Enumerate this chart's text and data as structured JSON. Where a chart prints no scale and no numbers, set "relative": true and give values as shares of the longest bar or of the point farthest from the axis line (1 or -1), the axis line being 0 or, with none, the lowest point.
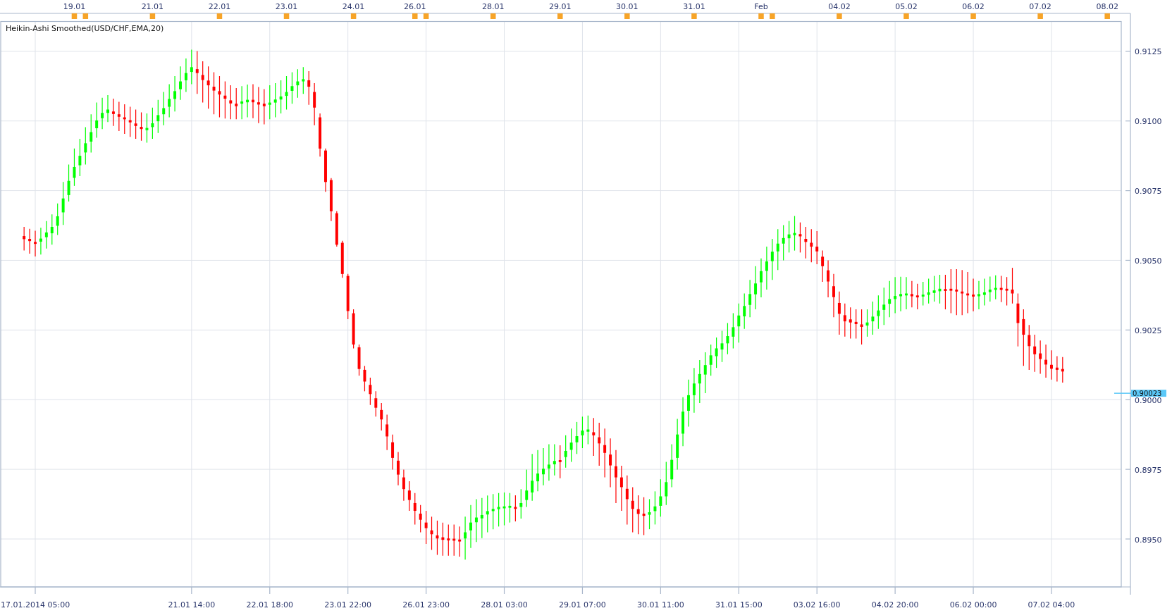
{
  "chart_data": [
    {
      "type": "bar",
      "categories": [
        null,
        null,
        null,
        null,
        null,
        null,
        null,
        null,
        null,
        "19.01",
        null,
        null,
        null,
        null,
        null,
        null,
        null,
        null,
        null,
        null,
        null,
        null,
        null,
        "21.01",
        null,
        null,
        null,
        null,
        null,
        null,
        null,
        null,
        null,
        null,
        null,
        "22.01",
        null,
        null,
        null,
        null,
        null,
        null,
        null,
        null,
        null,
        null,
        null,
        "23.01",
        null,
        null,
        null,
        null,
        null,
        null,
        null,
        null,
        null,
        null,
        null,
        "24.01",
        null,
        null,
        null,
        null,
        null,
        null,
        null,
        null,
        null,
        null,
        "26.01",
        null,
        null,
        null,
        null,
        null,
        null,
        null,
        null,
        null,
        null,
        null,
        null,
        null,
        "28.01",
        null,
        null,
        null,
        null,
        null,
        null,
        null,
        null,
        null,
        null,
        null,
        "29.01",
        null,
        null,
        null,
        null,
        null,
        null,
        null,
        null,
        null,
        null,
        null,
        "30.01",
        null,
        null,
        null,
        null,
        null,
        null,
        null,
        null,
        null,
        null,
        null,
        "31.01",
        null,
        null,
        null,
        null,
        null,
        null,
        null,
        null,
        null,
        null,
        null,
        "Feb",
        null,
        null,
        null,
        null,
        null,
        null,
        null,
        null,
        null,
        null,
        null,
        null,
        null,
        "04.02",
        null,
        null,
        null,
        null,
        null,
        null,
        null,
        null,
        null,
        null,
        null,
        "05.02",
        null,
        null,
        null,
        null,
        null,
        null,
        null,
        null,
        null,
        null,
        null,
        "06.02",
        null,
        null,
        null,
        null,
        null,
        null,
        null,
        null,
        null,
        null,
        null,
        "07.02",
        null,
        null,
        null,
        null,
        null,
        null,
        null,
        null,
        null,
        null,
        null,
        "08.02",
        null,
        null
      ],
      "values": [
        null,
        null,
        null,
        null,
        null,
        null,
        null,
        null,
        null,
        -1,
        null,
        -1,
        null,
        null,
        null,
        null,
        null,
        null,
        null,
        null,
        null,
        null,
        null,
        -1,
        null,
        null,
        null,
        null,
        null,
        null,
        null,
        null,
        null,
        null,
        null,
        -1,
        null,
        null,
        null,
        null,
        null,
        null,
        null,
        null,
        null,
        null,
        null,
        -1,
        null,
        null,
        null,
        null,
        null,
        null,
        null,
        null,
        null,
        null,
        null,
        -1,
        null,
        null,
        null,
        null,
        null,
        null,
        null,
        null,
        null,
        null,
        -1,
        null,
        -1,
        null,
        null,
        null,
        null,
        null,
        null,
        null,
        null,
        null,
        null,
        null,
        -1,
        null,
        null,
        null,
        null,
        null,
        null,
        null,
        null,
        null,
        null,
        null,
        -1,
        null,
        null,
        null,
        null,
        null,
        null,
        null,
        null,
        null,
        null,
        null,
        -1,
        null,
        null,
        null,
        null,
        null,
        null,
        null,
        null,
        null,
        null,
        null,
        -1,
        null,
        null,
        null,
        null,
        null,
        null,
        null,
        null,
        null,
        null,
        null,
        -1,
        null,
        -1,
        null,
        null,
        null,
        null,
        null,
        null,
        null,
        null,
        null,
        null,
        null,
        -1,
        null,
        null,
        null,
        null,
        null,
        null,
        null,
        null,
        null,
        null,
        null,
        -1,
        null,
        null,
        null,
        null,
        null,
        null,
        null,
        null,
        null,
        null,
        null,
        -1,
        null,
        null,
        null,
        null,
        null,
        null,
        null,
        null,
        null,
        null,
        null,
        -1,
        null,
        null,
        null,
        null,
        null,
        null,
        null,
        null,
        null,
        null,
        null,
        -1,
        null,
        null
      ],
      "relative": true,
      "color": "#f7a428"
    },
    {
      "type": "candlestick",
      "title": "Heikin-Ashi Smoothed(USD/CHF,EMA,20)",
      "categories": [
        null,
        null,
        "17.01.2014 05:00",
        null,
        null,
        null,
        null,
        null,
        null,
        null,
        null,
        null,
        null,
        null,
        null,
        null,
        null,
        null,
        null,
        null,
        null,
        null,
        null,
        null,
        null,
        null,
        null,
        null,
        null,
        null,
        "21.01 14:00",
        null,
        null,
        null,
        null,
        null,
        null,
        null,
        null,
        null,
        null,
        null,
        null,
        null,
        "22.01 18:00",
        null,
        null,
        null,
        null,
        null,
        null,
        null,
        null,
        null,
        null,
        null,
        null,
        null,
        "23.01 22:00",
        null,
        null,
        null,
        null,
        null,
        null,
        null,
        null,
        null,
        null,
        null,
        null,
        null,
        "26.01 23:00",
        null,
        null,
        null,
        null,
        null,
        null,
        null,
        null,
        null,
        null,
        null,
        null,
        null,
        "28.01 03:00",
        null,
        null,
        null,
        null,
        null,
        null,
        null,
        null,
        null,
        null,
        null,
        null,
        null,
        "29.01 07:00",
        null,
        null,
        null,
        null,
        null,
        null,
        null,
        null,
        null,
        null,
        null,
        null,
        null,
        "30.01 11:00",
        null,
        null,
        null,
        null,
        null,
        null,
        null,
        null,
        null,
        null,
        null,
        null,
        null,
        "31.01 15:00",
        null,
        null,
        null,
        null,
        null,
        null,
        null,
        null,
        null,
        null,
        null,
        null,
        null,
        "03.02 16:00",
        null,
        null,
        null,
        null,
        null,
        null,
        null,
        null,
        null,
        null,
        null,
        null,
        null,
        "04.02 20:00",
        null,
        null,
        null,
        null,
        null,
        null,
        null,
        null,
        null,
        null,
        null,
        null,
        null,
        "06.02 00:00",
        null,
        null,
        null,
        null,
        null,
        null,
        null,
        null,
        null,
        null,
        null,
        null,
        null,
        "07.02 04:00",
        null,
        null,
        null,
        null,
        null,
        null,
        null,
        null,
        null,
        null,
        null,
        null
      ],
      "ohlc": [
        [
          0.90587,
          0.9062,
          0.90535,
          0.90576
        ],
        [
          0.90577,
          0.90613,
          0.90524,
          0.90569
        ],
        [
          0.90566,
          0.90606,
          0.90514,
          0.90559
        ],
        [
          0.90567,
          0.90617,
          0.90521,
          0.90578
        ],
        [
          0.90583,
          0.90641,
          0.90542,
          0.906
        ],
        [
          0.90597,
          0.90665,
          0.90556,
          0.9062
        ],
        [
          0.90624,
          0.90704,
          0.90591,
          0.90658
        ],
        [
          0.90672,
          0.90781,
          0.90627,
          0.90722
        ],
        [
          0.90734,
          0.90844,
          0.90711,
          0.90785
        ],
        [
          0.90796,
          0.90901,
          0.90767,
          0.90835
        ],
        [
          0.90841,
          0.90936,
          0.90802,
          0.90875
        ],
        [
          0.90887,
          0.90978,
          0.90844,
          0.9092
        ],
        [
          0.90926,
          0.91024,
          0.90887,
          0.9096
        ],
        [
          0.90974,
          0.91066,
          0.9094,
          0.91002
        ],
        [
          0.9101,
          0.91083,
          0.90971,
          0.91029
        ],
        [
          0.91029,
          0.91093,
          0.90996,
          0.91041
        ],
        [
          0.91034,
          0.9108,
          0.90982,
          0.91025
        ],
        [
          0.91024,
          0.91069,
          0.90964,
          0.91015
        ],
        [
          0.91013,
          0.9106,
          0.90954,
          0.91006
        ],
        [
          0.91003,
          0.91051,
          0.90943,
          0.90995
        ],
        [
          0.90991,
          0.91041,
          0.90936,
          0.90982
        ],
        [
          0.90979,
          0.91031,
          0.90929,
          0.90971
        ],
        [
          0.90967,
          0.91027,
          0.90922,
          0.90975
        ],
        [
          0.90978,
          0.91048,
          0.90936,
          0.90992
        ],
        [
          0.90999,
          0.91076,
          0.90957,
          0.91021
        ],
        [
          0.91024,
          0.91104,
          0.90985,
          0.91046
        ],
        [
          0.91051,
          0.91132,
          0.91013,
          0.91079
        ],
        [
          0.91079,
          0.91161,
          0.91034,
          0.91107
        ],
        [
          0.91114,
          0.91196,
          0.91076,
          0.91142
        ],
        [
          0.91146,
          0.91224,
          0.91104,
          0.91172
        ],
        [
          0.91176,
          0.91256,
          0.91132,
          0.91193
        ],
        [
          0.91186,
          0.91251,
          0.91097,
          0.91172
        ],
        [
          0.91165,
          0.91214,
          0.91066,
          0.91147
        ],
        [
          0.91145,
          0.91196,
          0.91044,
          0.91128
        ],
        [
          0.91123,
          0.91175,
          0.91024,
          0.91109
        ],
        [
          0.91107,
          0.91161,
          0.91013,
          0.91095
        ],
        [
          0.91091,
          0.91142,
          0.91009,
          0.9108
        ],
        [
          0.91074,
          0.91128,
          0.91006,
          0.91063
        ],
        [
          0.91062,
          0.91118,
          0.91006,
          0.91053
        ],
        [
          0.91062,
          0.91125,
          0.91006,
          0.9107
        ],
        [
          0.91067,
          0.91131,
          0.91013,
          0.91076
        ],
        [
          0.91076,
          0.91132,
          0.9101,
          0.91067
        ],
        [
          0.91067,
          0.91122,
          0.90992,
          0.91059
        ],
        [
          0.91062,
          0.91114,
          0.90988,
          0.91053
        ],
        [
          0.91058,
          0.91128,
          0.91006,
          0.91066
        ],
        [
          0.91066,
          0.91136,
          0.91013,
          0.91077
        ],
        [
          0.91077,
          0.91146,
          0.91027,
          0.91088
        ],
        [
          0.9109,
          0.91161,
          0.91041,
          0.91104
        ],
        [
          0.91108,
          0.91175,
          0.91062,
          0.91125
        ],
        [
          0.91128,
          0.91186,
          0.91083,
          0.91142
        ],
        [
          0.91142,
          0.91193,
          0.91097,
          0.9115
        ],
        [
          0.91146,
          0.91179,
          0.91058,
          0.91123
        ],
        [
          0.91104,
          0.91136,
          0.90985,
          0.91048
        ],
        [
          0.91013,
          0.91027,
          0.90872,
          0.90901
        ],
        [
          0.90894,
          0.90901,
          0.90746,
          0.90781
        ],
        [
          0.90788,
          0.90795,
          0.90641,
          0.90676
        ],
        [
          0.90669,
          0.90676,
          0.90549,
          0.90556
        ],
        [
          0.90563,
          0.9057,
          0.90437,
          0.90451
        ],
        [
          0.90444,
          0.90451,
          0.90289,
          0.90318
        ],
        [
          0.9031,
          0.90324,
          0.90184,
          0.90198
        ],
        [
          0.90188,
          0.90198,
          0.90086,
          0.9011
        ],
        [
          0.90107,
          0.90121,
          0.9003,
          0.90065
        ],
        [
          0.90053,
          0.90079,
          0.89981,
          0.9002
        ],
        [
          0.90005,
          0.9003,
          0.89939,
          0.89971
        ],
        [
          0.89963,
          0.89988,
          0.89889,
          0.89929
        ],
        [
          0.89911,
          0.89946,
          0.89819,
          0.89868
        ],
        [
          0.89847,
          0.89875,
          0.89749,
          0.89791
        ],
        [
          0.89781,
          0.89812,
          0.89693,
          0.89731
        ],
        [
          0.89721,
          0.89749,
          0.89637,
          0.89679
        ],
        [
          0.89674,
          0.89707,
          0.89601,
          0.8964
        ],
        [
          0.89629,
          0.89665,
          0.89552,
          0.89601
        ],
        [
          0.89591,
          0.89622,
          0.89524,
          0.89569
        ],
        [
          0.89559,
          0.89601,
          0.89482,
          0.89539
        ],
        [
          0.89531,
          0.8958,
          0.89461,
          0.89517
        ],
        [
          0.89513,
          0.89566,
          0.89443,
          0.89502
        ],
        [
          0.89506,
          0.89559,
          0.8944,
          0.89497
        ],
        [
          0.89502,
          0.89552,
          0.8944,
          0.89495
        ],
        [
          0.89501,
          0.89552,
          0.8944,
          0.89494
        ],
        [
          0.89498,
          0.89545,
          0.89437,
          0.89491
        ],
        [
          0.89502,
          0.8958,
          0.89426,
          0.89524
        ],
        [
          0.89531,
          0.89622,
          0.89468,
          0.89559
        ],
        [
          0.8956,
          0.89643,
          0.89489,
          0.89577
        ],
        [
          0.89574,
          0.89647,
          0.89503,
          0.89586
        ],
        [
          0.89588,
          0.89656,
          0.89524,
          0.896
        ],
        [
          0.896,
          0.89661,
          0.89535,
          0.89608
        ],
        [
          0.89607,
          0.89665,
          0.89545,
          0.89615
        ],
        [
          0.8961,
          0.89667,
          0.89549,
          0.89617
        ],
        [
          0.89612,
          0.89665,
          0.89559,
          0.89619
        ],
        [
          0.89615,
          0.89657,
          0.89563,
          0.89608
        ],
        [
          0.89615,
          0.89679,
          0.89573,
          0.89629
        ],
        [
          0.8964,
          0.89749,
          0.89615,
          0.89674
        ],
        [
          0.89667,
          0.89805,
          0.89637,
          0.89709
        ],
        [
          0.89707,
          0.89819,
          0.89671,
          0.89735
        ],
        [
          0.89732,
          0.89826,
          0.89693,
          0.89752
        ],
        [
          0.89753,
          0.8984,
          0.89709,
          0.89767
        ],
        [
          0.89768,
          0.8984,
          0.89728,
          0.8978
        ],
        [
          0.89783,
          0.89836,
          0.89718,
          0.89776
        ],
        [
          0.89794,
          0.89872,
          0.89756,
          0.89816
        ],
        [
          0.8982,
          0.89896,
          0.89777,
          0.89846
        ],
        [
          0.89847,
          0.8992,
          0.89805,
          0.89869
        ],
        [
          0.89872,
          0.89939,
          0.89826,
          0.89889
        ],
        [
          0.89885,
          0.89943,
          0.8984,
          0.89893
        ],
        [
          0.89883,
          0.89934,
          0.89798,
          0.89872
        ],
        [
          0.89865,
          0.89917,
          0.89763,
          0.89843
        ],
        [
          0.89837,
          0.89896,
          0.89721,
          0.89809
        ],
        [
          0.89803,
          0.89861,
          0.89686,
          0.89764
        ],
        [
          0.89761,
          0.89819,
          0.89629,
          0.89721
        ],
        [
          0.89721,
          0.89763,
          0.89601,
          0.89686
        ],
        [
          0.8968,
          0.89728,
          0.89552,
          0.89643
        ],
        [
          0.89637,
          0.89686,
          0.89524,
          0.89608
        ],
        [
          0.89607,
          0.89657,
          0.89517,
          0.8959
        ],
        [
          0.89591,
          0.8965,
          0.89514,
          0.89583
        ],
        [
          0.89587,
          0.89643,
          0.89535,
          0.89596
        ],
        [
          0.896,
          0.89671,
          0.89552,
          0.89617
        ],
        [
          0.89619,
          0.89714,
          0.8958,
          0.89653
        ],
        [
          0.89653,
          0.89777,
          0.89622,
          0.89704
        ],
        [
          0.89714,
          0.8984,
          0.89686,
          0.89784
        ],
        [
          0.89791,
          0.89931,
          0.89749,
          0.89875
        ],
        [
          0.89878,
          0.90009,
          0.89833,
          0.89957
        ],
        [
          0.8996,
          0.90072,
          0.89903,
          0.90016
        ],
        [
          0.90016,
          0.90114,
          0.89953,
          0.90058
        ],
        [
          0.90058,
          0.90142,
          0.89988,
          0.90092
        ],
        [
          0.9009,
          0.9017,
          0.90023,
          0.90124
        ],
        [
          0.90125,
          0.90198,
          0.90086,
          0.90159
        ],
        [
          0.90156,
          0.90223,
          0.90114,
          0.90184
        ],
        [
          0.9018,
          0.90247,
          0.90135,
          0.90202
        ],
        [
          0.90202,
          0.90275,
          0.90163,
          0.90228
        ],
        [
          0.90226,
          0.9031,
          0.90184,
          0.9026
        ],
        [
          0.90263,
          0.90345,
          0.90205,
          0.90302
        ],
        [
          0.90299,
          0.90381,
          0.90254,
          0.90336
        ],
        [
          0.9034,
          0.9043,
          0.90296,
          0.90379
        ],
        [
          0.90378,
          0.90479,
          0.90324,
          0.90417
        ],
        [
          0.90421,
          0.90507,
          0.90367,
          0.90461
        ],
        [
          0.90462,
          0.90549,
          0.90395,
          0.90496
        ],
        [
          0.90497,
          0.90577,
          0.9043,
          0.90531
        ],
        [
          0.90532,
          0.90612,
          0.90465,
          0.9056
        ],
        [
          0.9056,
          0.90626,
          0.905,
          0.9058
        ],
        [
          0.90579,
          0.90641,
          0.90528,
          0.90593
        ],
        [
          0.9059,
          0.90659,
          0.90535,
          0.90598
        ],
        [
          0.90594,
          0.90636,
          0.90528,
          0.90586
        ],
        [
          0.90577,
          0.9062,
          0.90507,
          0.90566
        ],
        [
          0.90563,
          0.90612,
          0.90493,
          0.90549
        ],
        [
          0.90549,
          0.90605,
          0.90486,
          0.90532
        ],
        [
          0.90513,
          0.90535,
          0.90423,
          0.90479
        ],
        [
          0.90464,
          0.905,
          0.90367,
          0.90424
        ],
        [
          0.90407,
          0.90451,
          0.90296,
          0.90368
        ],
        [
          0.90347,
          0.90388,
          0.90233,
          0.90308
        ],
        [
          0.90303,
          0.90345,
          0.90226,
          0.90281
        ],
        [
          0.90288,
          0.90331,
          0.90219,
          0.90277
        ],
        [
          0.90279,
          0.90324,
          0.90219,
          0.90271
        ],
        [
          0.9027,
          0.90324,
          0.90198,
          0.90261
        ],
        [
          0.90266,
          0.90324,
          0.90226,
          0.90277
        ],
        [
          0.90281,
          0.90352,
          0.90233,
          0.90298
        ],
        [
          0.903,
          0.90374,
          0.90254,
          0.9032
        ],
        [
          0.90322,
          0.90402,
          0.90268,
          0.90341
        ],
        [
          0.90344,
          0.90426,
          0.90296,
          0.90361
        ],
        [
          0.90361,
          0.9044,
          0.9031,
          0.90372
        ],
        [
          0.90371,
          0.90441,
          0.90317,
          0.90379
        ],
        [
          0.90374,
          0.9044,
          0.90324,
          0.90381
        ],
        [
          0.90379,
          0.90426,
          0.90331,
          0.90371
        ],
        [
          0.90374,
          0.90416,
          0.90324,
          0.90367
        ],
        [
          0.9037,
          0.90423,
          0.90338,
          0.90377
        ],
        [
          0.90376,
          0.90434,
          0.90345,
          0.90385
        ],
        [
          0.90383,
          0.90444,
          0.90352,
          0.90392
        ],
        [
          0.90389,
          0.90448,
          0.90345,
          0.90398
        ],
        [
          0.90397,
          0.90448,
          0.90324,
          0.9039
        ],
        [
          0.90398,
          0.90468,
          0.9031,
          0.90391
        ],
        [
          0.90395,
          0.90468,
          0.90303,
          0.90388
        ],
        [
          0.90388,
          0.90465,
          0.90303,
          0.90381
        ],
        [
          0.90381,
          0.90458,
          0.9031,
          0.90374
        ],
        [
          0.90377,
          0.90434,
          0.90317,
          0.9037
        ],
        [
          0.90371,
          0.90426,
          0.90324,
          0.90379
        ],
        [
          0.90376,
          0.90434,
          0.90338,
          0.90385
        ],
        [
          0.90386,
          0.90442,
          0.90352,
          0.90395
        ],
        [
          0.90394,
          0.90446,
          0.9036,
          0.90401
        ],
        [
          0.90401,
          0.90444,
          0.9035,
          0.90394
        ],
        [
          0.90398,
          0.9044,
          0.90338,
          0.90391
        ],
        [
          0.90395,
          0.90473,
          0.90345,
          0.90381
        ],
        [
          0.90345,
          0.90381,
          0.90191,
          0.90275
        ],
        [
          0.90289,
          0.90324,
          0.90121,
          0.90233
        ],
        [
          0.90232,
          0.90268,
          0.90107,
          0.90192
        ],
        [
          0.90191,
          0.90233,
          0.901,
          0.90163
        ],
        [
          0.90166,
          0.90212,
          0.90093,
          0.90146
        ],
        [
          0.90143,
          0.90198,
          0.90079,
          0.90126
        ],
        [
          0.90125,
          0.90177,
          0.90072,
          0.90111
        ],
        [
          0.90115,
          0.90156,
          0.90065,
          0.90107
        ],
        [
          0.9011,
          0.90153,
          0.90061,
          0.90101
        ],
        null,
        null,
        null,
        null,
        null,
        null,
        null,
        null,
        null,
        null
      ],
      "colors": [
        "#ff0000",
        "#ff0000",
        "#ff0000",
        "#00ff00",
        "#00ff00",
        "#00ff00",
        "#00ff00",
        "#00ff00",
        "#00ff00",
        "#00ff00",
        "#00ff00",
        "#00ff00",
        "#00ff00",
        "#00ff00",
        "#00ff00",
        "#00ff00",
        "#ff0000",
        "#ff0000",
        "#ff0000",
        "#ff0000",
        "#ff0000",
        "#ff0000",
        "#00ff00",
        "#00ff00",
        "#00ff00",
        "#00ff00",
        "#00ff00",
        "#00ff00",
        "#00ff00",
        "#00ff00",
        "#00ff00",
        "#ff0000",
        "#ff0000",
        "#ff0000",
        "#ff0000",
        "#ff0000",
        "#ff0000",
        "#ff0000",
        "#ff0000",
        "#00ff00",
        "#00ff00",
        "#ff0000",
        "#ff0000",
        "#ff0000",
        "#00ff00",
        "#00ff00",
        "#00ff00",
        "#00ff00",
        "#00ff00",
        "#00ff00",
        "#00ff00",
        "#ff0000",
        "#ff0000",
        "#ff0000",
        "#ff0000",
        "#ff0000",
        "#ff0000",
        "#ff0000",
        "#ff0000",
        "#ff0000",
        "#ff0000",
        "#ff0000",
        "#ff0000",
        "#ff0000",
        "#ff0000",
        "#ff0000",
        "#ff0000",
        "#ff0000",
        "#ff0000",
        "#ff0000",
        "#ff0000",
        "#ff0000",
        "#ff0000",
        "#ff0000",
        "#ff0000",
        "#ff0000",
        "#ff0000",
        "#ff0000",
        "#ff0000",
        "#00ff00",
        "#00ff00",
        "#00ff00",
        "#00ff00",
        "#00ff00",
        "#00ff00",
        "#00ff00",
        "#00ff00",
        "#00ff00",
        "#ff0000",
        "#00ff00",
        "#00ff00",
        "#00ff00",
        "#00ff00",
        "#00ff00",
        "#00ff00",
        "#00ff00",
        "#ff0000",
        "#00ff00",
        "#00ff00",
        "#00ff00",
        "#00ff00",
        "#00ff00",
        "#ff0000",
        "#ff0000",
        "#ff0000",
        "#ff0000",
        "#ff0000",
        "#ff0000",
        "#ff0000",
        "#ff0000",
        "#ff0000",
        "#ff0000",
        "#00ff00",
        "#00ff00",
        "#00ff00",
        "#00ff00",
        "#00ff00",
        "#00ff00",
        "#00ff00",
        "#00ff00",
        "#00ff00",
        "#00ff00",
        "#00ff00",
        "#00ff00",
        "#00ff00",
        "#00ff00",
        "#00ff00",
        "#00ff00",
        "#00ff00",
        "#00ff00",
        "#00ff00",
        "#00ff00",
        "#00ff00",
        "#00ff00",
        "#00ff00",
        "#00ff00",
        "#00ff00",
        "#00ff00",
        "#00ff00",
        "#ff0000",
        "#ff0000",
        "#ff0000",
        "#ff0000",
        "#ff0000",
        "#ff0000",
        "#ff0000",
        "#ff0000",
        "#ff0000",
        "#ff0000",
        "#ff0000",
        "#ff0000",
        "#00ff00",
        "#00ff00",
        "#00ff00",
        "#00ff00",
        "#00ff00",
        "#00ff00",
        "#00ff00",
        "#00ff00",
        "#ff0000",
        "#ff0000",
        "#00ff00",
        "#00ff00",
        "#00ff00",
        "#00ff00",
        "#ff0000",
        "#ff0000",
        "#ff0000",
        "#ff0000",
        "#ff0000",
        "#ff0000",
        "#00ff00",
        "#00ff00",
        "#00ff00",
        "#00ff00",
        "#ff0000",
        "#ff0000",
        "#ff0000",
        "#ff0000",
        "#ff0000",
        "#ff0000",
        "#ff0000",
        "#ff0000",
        "#ff0000",
        "#ff0000",
        "#ff0000",
        "#ff0000",
        null,
        null,
        null,
        null,
        null,
        null,
        null,
        null,
        null,
        null
      ],
      "ylim": [
        0.89328,
        0.91357
      ],
      "yticks": [
        {
          "value": 0.895,
          "label": "0.8950"
        },
        {
          "value": 0.8975,
          "label": "0.8975"
        },
        {
          "value": 0.9,
          "label": "0.9000"
        },
        {
          "value": 0.9025,
          "label": "0.9025"
        },
        {
          "value": 0.905,
          "label": "0.9050"
        },
        {
          "value": 0.9075,
          "label": "0.9075"
        },
        {
          "value": 0.91,
          "label": "0.9100"
        },
        {
          "value": 0.9125,
          "label": "0.9125"
        }
      ],
      "grid": true,
      "ref_lines": [
        {
          "axis": "y",
          "value": 0.90023,
          "label": "0.90023",
          "color": "#5ac8f8"
        }
      ]
    }
  ]
}
